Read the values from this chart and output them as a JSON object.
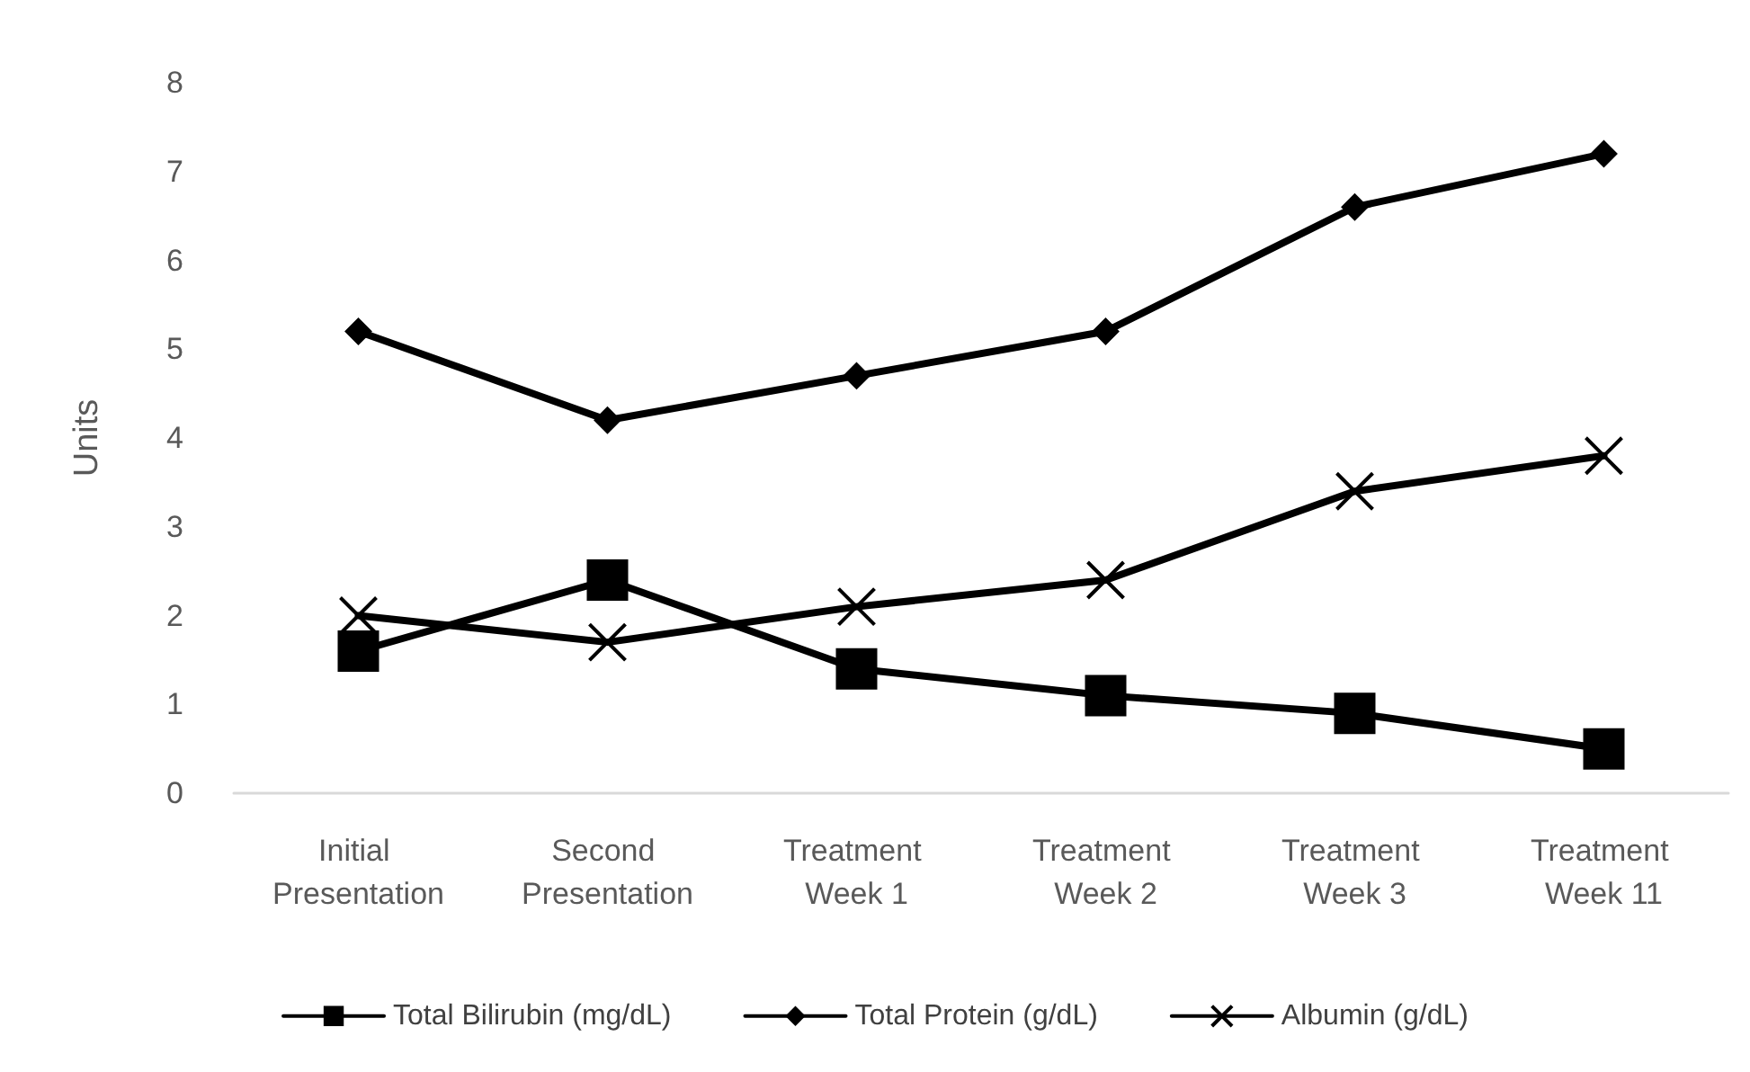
{
  "chart_data": {
    "type": "line",
    "ylabel": "Units",
    "categories": [
      "Initial Presentation",
      "Second Presentation",
      "Treatment Week 1",
      "Treatment Week 2",
      "Treatment Week 3",
      "Treatment Week 11"
    ],
    "series": [
      {
        "name": "Total Bilirubin (mg/dL)",
        "color": "#000000",
        "marker": "square",
        "values": [
          1.6,
          2.4,
          1.4,
          1.1,
          0.9,
          0.5
        ]
      },
      {
        "name": "Total Protein (g/dL)",
        "color": "#000000",
        "marker": "diamond",
        "values": [
          5.2,
          4.2,
          4.7,
          5.2,
          6.6,
          7.2
        ]
      },
      {
        "name": "Albumin (g/dL)",
        "color": "#000000",
        "marker": "cross",
        "values": [
          2.0,
          1.7,
          2.1,
          2.4,
          3.4,
          3.8
        ]
      }
    ],
    "ylim": [
      0,
      8
    ],
    "yticks": [
      0,
      1,
      2,
      3,
      4,
      5,
      6,
      7,
      8
    ],
    "grid": false,
    "legend": "bottom",
    "line_style": "solid"
  }
}
